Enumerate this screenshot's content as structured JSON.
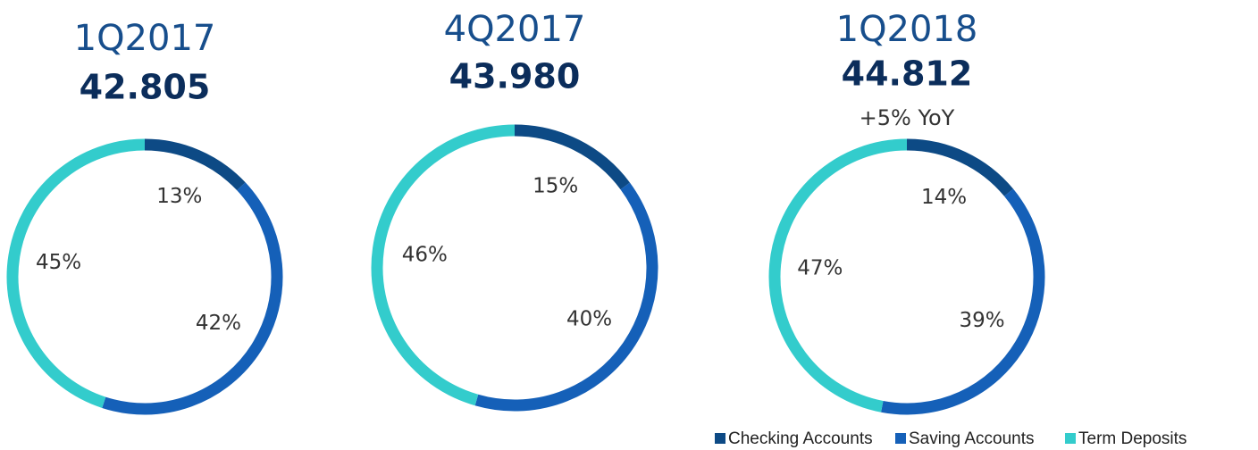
{
  "chart_data": [
    {
      "type": "donut",
      "title": "1Q2017",
      "subtitle": "42.805",
      "categories": [
        "Checking Accounts",
        "Saving Accounts",
        "Term Deposits"
      ],
      "values": [
        13,
        42,
        45
      ],
      "value_labels": [
        "13%",
        "42%",
        "45%"
      ],
      "colors": [
        "#0d4a85",
        "#1560b8",
        "#33cccc"
      ]
    },
    {
      "type": "donut",
      "title": "4Q2017",
      "subtitle": "43.980",
      "categories": [
        "Checking Accounts",
        "Saving Accounts",
        "Term Deposits"
      ],
      "values": [
        15,
        40,
        46
      ],
      "value_labels": [
        "15%",
        "40%",
        "46%"
      ],
      "colors": [
        "#0d4a85",
        "#1560b8",
        "#33cccc"
      ]
    },
    {
      "type": "donut",
      "title": "1Q2018",
      "subtitle": "44.812",
      "annotation": "+5% YoY",
      "categories": [
        "Checking Accounts",
        "Saving Accounts",
        "Term Deposits"
      ],
      "values": [
        14,
        39,
        47
      ],
      "value_labels": [
        "14%",
        "39%",
        "47%"
      ],
      "colors": [
        "#0d4a85",
        "#1560b8",
        "#33cccc"
      ]
    }
  ]
}
